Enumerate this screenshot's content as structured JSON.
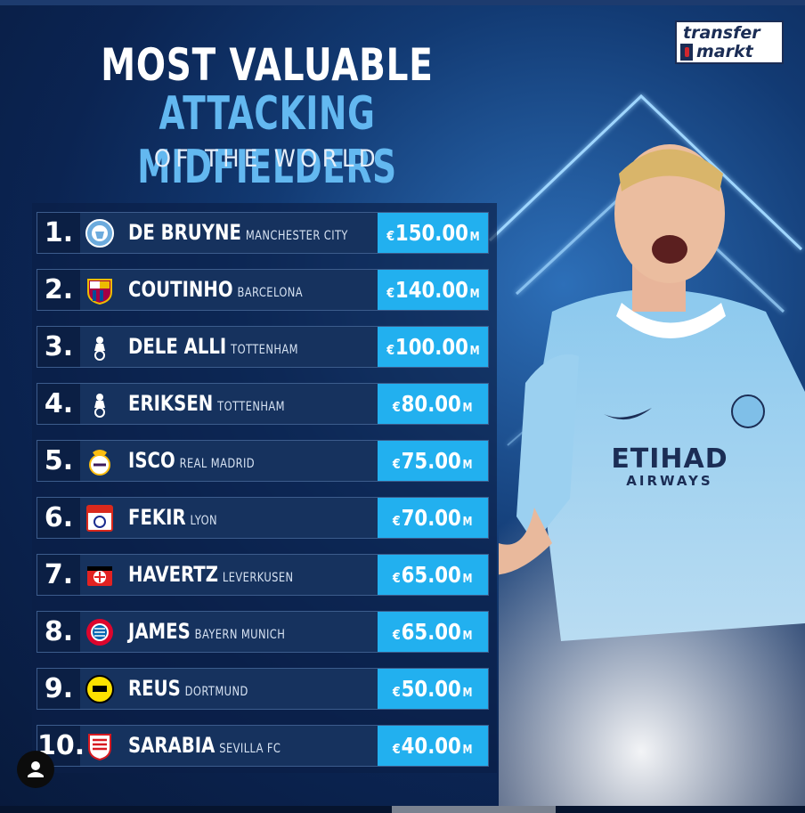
{
  "header": {
    "line1": "MOST VALUABLE",
    "line2": "ATTACKING MIDFIELDERS",
    "line3": "OF THE WORLD"
  },
  "logo": {
    "line1": "transfer",
    "line2": "markt"
  },
  "colors": {
    "accent": "#22b0ef",
    "title_blue": "#63b8f0",
    "row_bg": "#16325e",
    "rank_bg": "#0b1f44"
  },
  "players": [
    {
      "rank": "1.",
      "name": "DE BRUYNE",
      "club": "MANCHESTER CITY",
      "currency": "€",
      "amount": "150.00",
      "unit": "M",
      "crest": "manchester-city-crest-icon"
    },
    {
      "rank": "2.",
      "name": "COUTINHO",
      "club": "BARCELONA",
      "currency": "€",
      "amount": "140.00",
      "unit": "M",
      "crest": "barcelona-crest-icon"
    },
    {
      "rank": "3.",
      "name": "DELE ALLI",
      "club": "TOTTENHAM",
      "currency": "€",
      "amount": "100.00",
      "unit": "M",
      "crest": "tottenham-crest-icon"
    },
    {
      "rank": "4.",
      "name": "ERIKSEN",
      "club": "TOTTENHAM",
      "currency": "€",
      "amount": "80.00",
      "unit": "M",
      "crest": "tottenham-crest-icon"
    },
    {
      "rank": "5.",
      "name": "ISCO",
      "club": "REAL MADRID",
      "currency": "€",
      "amount": "75.00",
      "unit": "M",
      "crest": "real-madrid-crest-icon"
    },
    {
      "rank": "6.",
      "name": "FEKIR",
      "club": "LYON",
      "currency": "€",
      "amount": "70.00",
      "unit": "M",
      "crest": "lyon-crest-icon"
    },
    {
      "rank": "7.",
      "name": "HAVERTZ",
      "club": "LEVERKUSEN",
      "currency": "€",
      "amount": "65.00",
      "unit": "M",
      "crest": "leverkusen-crest-icon"
    },
    {
      "rank": "8.",
      "name": "JAMES",
      "club": "BAYERN MUNICH",
      "currency": "€",
      "amount": "65.00",
      "unit": "M",
      "crest": "bayern-crest-icon"
    },
    {
      "rank": "9.",
      "name": "REUS",
      "club": "DORTMUND",
      "currency": "€",
      "amount": "50.00",
      "unit": "M",
      "crest": "dortmund-crest-icon"
    },
    {
      "rank": "10.",
      "name": "SARABIA",
      "club": "SEVILLA FC",
      "currency": "€",
      "amount": "40.00",
      "unit": "M",
      "crest": "sevilla-crest-icon"
    }
  ],
  "overlay": {
    "icon": "user-profile-icon"
  }
}
